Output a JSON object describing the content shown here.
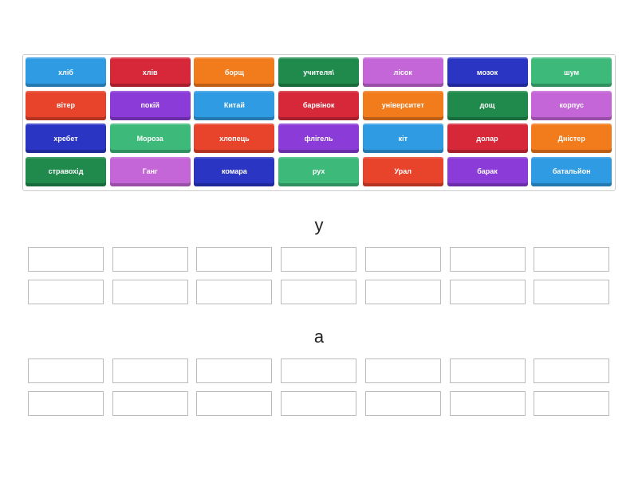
{
  "tiles": [
    {
      "label": "хліб",
      "color": "#2f9be3"
    },
    {
      "label": "хлів",
      "color": "#d62839"
    },
    {
      "label": "борщ",
      "color": "#f27b1c"
    },
    {
      "label": "учителя\\",
      "color": "#1f8a4c"
    },
    {
      "label": "лісок",
      "color": "#c466d8"
    },
    {
      "label": "мозок",
      "color": "#2a35c4"
    },
    {
      "label": "шум",
      "color": "#3dba7a"
    },
    {
      "label": "вітер",
      "color": "#e8432b"
    },
    {
      "label": "покій",
      "color": "#8b3bd8"
    },
    {
      "label": "Китай",
      "color": "#2f9be3"
    },
    {
      "label": "барвінок",
      "color": "#d62839"
    },
    {
      "label": "університет",
      "color": "#f27b1c"
    },
    {
      "label": "дощ",
      "color": "#1f8a4c"
    },
    {
      "label": "корпус",
      "color": "#c466d8"
    },
    {
      "label": "хребет",
      "color": "#2a35c4"
    },
    {
      "label": "Мороза",
      "color": "#3dba7a"
    },
    {
      "label": "хлопець",
      "color": "#e8432b"
    },
    {
      "label": "флігель",
      "color": "#8b3bd8"
    },
    {
      "label": "кіт",
      "color": "#2f9be3"
    },
    {
      "label": "долар",
      "color": "#d62839"
    },
    {
      "label": "Дністер",
      "color": "#f27b1c"
    },
    {
      "label": "стравохід",
      "color": "#1f8a4c"
    },
    {
      "label": "Ганг",
      "color": "#c466d8"
    },
    {
      "label": "комара",
      "color": "#2a35c4"
    },
    {
      "label": "рух",
      "color": "#3dba7a"
    },
    {
      "label": "Урал",
      "color": "#e8432b"
    },
    {
      "label": "барак",
      "color": "#8b3bd8"
    },
    {
      "label": "батальйон",
      "color": "#2f9be3"
    }
  ],
  "groups": [
    {
      "title": "у"
    },
    {
      "title": "а"
    }
  ]
}
